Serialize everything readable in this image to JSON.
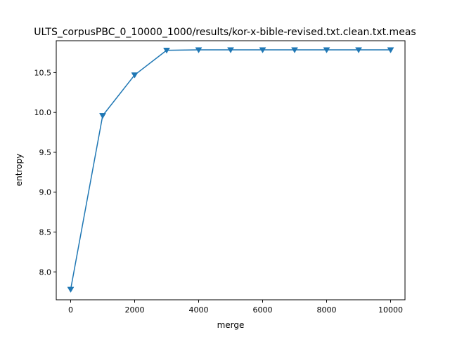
{
  "chart_data": {
    "type": "line",
    "title": "ULTS_corpusPBC_0_10000_1000/results/kor-x-bible-revised.txt.clean.txt.meas",
    "xlabel": "merge",
    "ylabel": "entropy",
    "xlim": [
      -450,
      10450
    ],
    "ylim": [
      7.65,
      10.9
    ],
    "xticks": [
      0,
      2000,
      4000,
      6000,
      8000,
      10000
    ],
    "xtick_labels": [
      "0",
      "2000",
      "4000",
      "6000",
      "8000",
      "10000"
    ],
    "yticks": [
      8.0,
      8.5,
      9.0,
      9.5,
      10.0,
      10.5
    ],
    "ytick_labels": [
      "8.0",
      "8.5",
      "9.0",
      "9.5",
      "10.0",
      "10.5"
    ],
    "grid": false,
    "series": [
      {
        "color": "#1f77b4",
        "marker": "triangle-down",
        "x": [
          0,
          1000,
          2000,
          3000,
          4000,
          5000,
          6000,
          7000,
          8000,
          9000,
          10000
        ],
        "y": [
          7.78,
          9.96,
          10.47,
          10.78,
          10.785,
          10.785,
          10.785,
          10.785,
          10.785,
          10.785,
          10.785
        ]
      }
    ]
  }
}
